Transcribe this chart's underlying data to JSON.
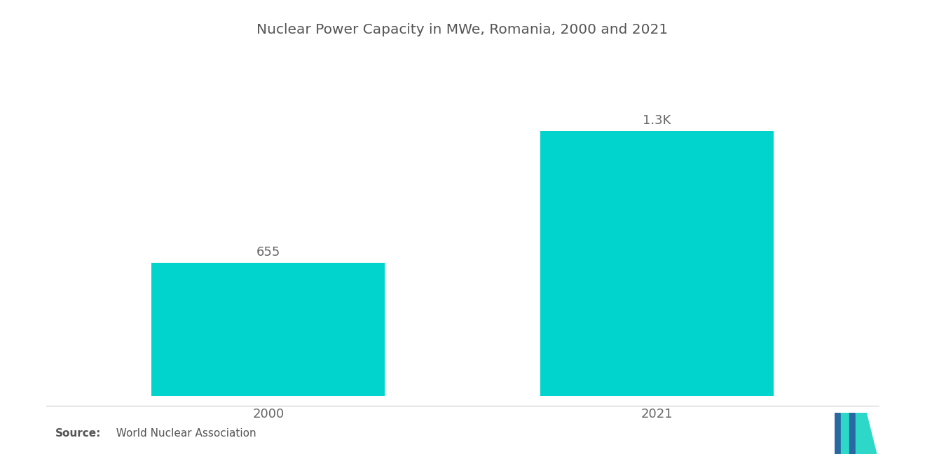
{
  "title": "Nuclear Power Capacity in MWe, Romania, 2000 and 2021",
  "categories": [
    "2000",
    "2021"
  ],
  "values": [
    655,
    1300
  ],
  "bar_labels": [
    "655",
    "1.3K"
  ],
  "bar_color": "#00D4CC",
  "background_color": "#ffffff",
  "title_fontsize": 14.5,
  "label_fontsize": 13,
  "tick_fontsize": 13,
  "source_bold": "Source:",
  "source_normal": "  World Nuclear Association",
  "ylim": [
    0,
    1600
  ],
  "x_positions": [
    1,
    3
  ],
  "bar_width": 1.2,
  "xlim": [
    0,
    4
  ],
  "logo_blue": "#2968A0",
  "logo_teal": "#2ED8C8"
}
